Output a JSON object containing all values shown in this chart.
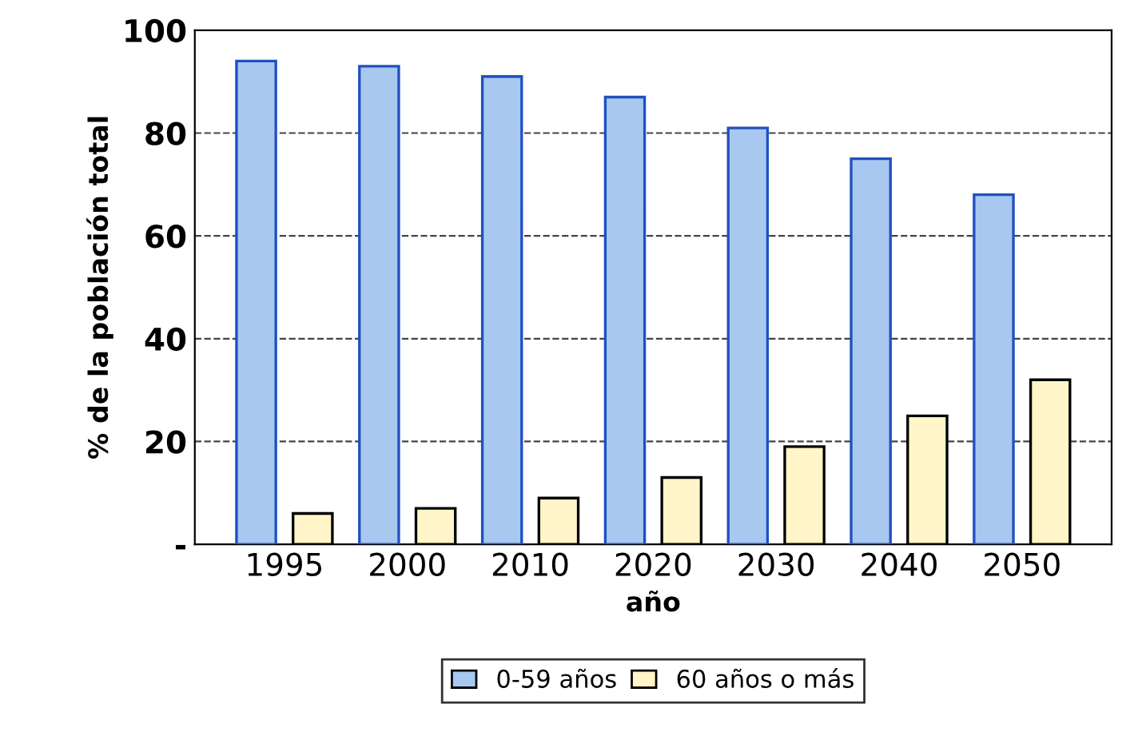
{
  "chart_data": {
    "type": "bar",
    "xlabel": "año",
    "ylabel": "% de la población total",
    "categories": [
      "1995",
      "2000",
      "2010",
      "2020",
      "2030",
      "2040",
      "2050"
    ],
    "series": [
      {
        "name": "0-59 años",
        "color": "#a8c8f0",
        "values": [
          94,
          93,
          91,
          87,
          81,
          75,
          68
        ]
      },
      {
        "name": "60 años o más",
        "color": "#fff5c8",
        "values": [
          6,
          7,
          9,
          13,
          19,
          25,
          32
        ]
      }
    ],
    "ylim": [
      0,
      100
    ],
    "yticks": [
      {
        "value": 0,
        "label": "-"
      },
      20,
      40,
      60,
      80,
      100
    ],
    "grid": "y",
    "legend": "bottom"
  }
}
